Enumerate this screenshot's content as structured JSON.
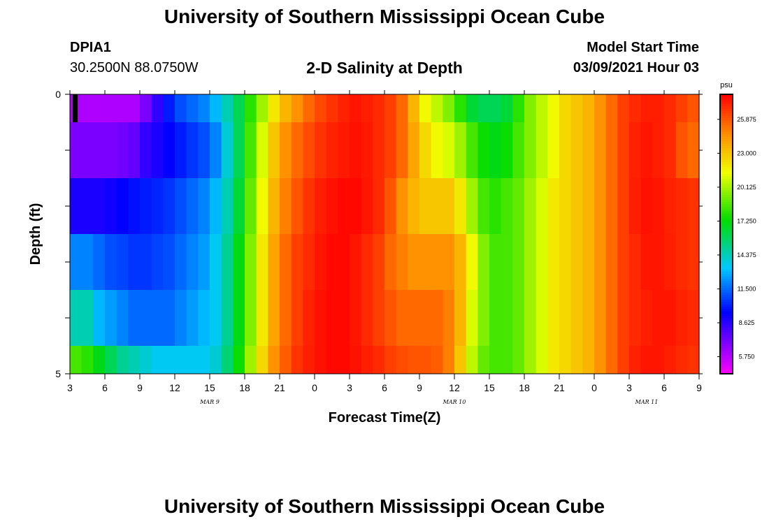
{
  "header": {
    "title": "University of Southern Mississippi Ocean Cube",
    "station_id": "DPIA1",
    "station_coords": "30.2500N 88.0750W",
    "plot_title": "2-D Salinity at Depth",
    "model_label": "Model Start Time",
    "model_time": "03/09/2021 Hour 03"
  },
  "footer": {
    "title": "University of Southern Mississippi Ocean Cube"
  },
  "chart_data": {
    "type": "heatmap",
    "title": "2-D Salinity at Depth",
    "xlabel": "Forecast Time(Z)",
    "ylabel": "Depth (ft)",
    "x_tick_labels": [
      "3",
      "6",
      "9",
      "12",
      "15",
      "18",
      "21",
      "0",
      "3",
      "6",
      "9",
      "12",
      "15",
      "18",
      "21",
      "0",
      "3",
      "6",
      "9"
    ],
    "date_labels": [
      {
        "label": "MAR 9",
        "tick_index": 4
      },
      {
        "label": "MAR 10",
        "tick_index": 11
      },
      {
        "label": "MAR 11",
        "tick_index": 16.5
      }
    ],
    "y_tick_labels": [
      "0",
      "5"
    ],
    "y_range": [
      0,
      5
    ],
    "x_hours_range": [
      0,
      54
    ],
    "colorbar": {
      "unit": "psu",
      "range": [
        4.3,
        28.0
      ],
      "tick_values": [
        5.75,
        8.625,
        11.5,
        14.375,
        17.25,
        20.125,
        23.0,
        25.875
      ],
      "tick_labels": [
        "5.750",
        "8.625",
        "11.500",
        "14.375",
        "17.250",
        "20.125",
        "23.000",
        "25.875"
      ]
    },
    "time_hours": [
      0,
      1,
      2,
      3,
      4,
      5,
      6,
      7,
      8,
      9,
      10,
      11,
      12,
      13,
      14,
      15,
      16,
      17,
      18,
      19,
      20,
      21,
      22,
      23,
      24,
      25,
      26,
      27,
      28,
      29,
      30,
      31,
      32,
      33,
      34,
      35,
      36,
      37,
      38,
      39,
      40,
      41,
      42,
      43,
      44,
      45,
      46,
      47,
      48,
      49,
      50,
      51,
      52,
      53
    ],
    "depth_rows": [
      {
        "depth_range": [
          0.0,
          0.5
        ],
        "values": [
          6.0,
          6.0,
          6.0,
          6.0,
          6.0,
          6.0,
          7.0,
          8.5,
          10.0,
          11.0,
          11.5,
          12.0,
          13.0,
          14.5,
          16.0,
          18.0,
          20.0,
          22.0,
          23.5,
          24.5,
          25.5,
          26.3,
          26.8,
          27.2,
          27.5,
          27.3,
          27.0,
          26.5,
          25.5,
          23.5,
          21.5,
          20.5,
          19.5,
          18.0,
          16.5,
          16.0,
          16.0,
          16.5,
          18.0,
          19.5,
          20.5,
          21.5,
          22.5,
          23.0,
          23.5,
          24.5,
          25.5,
          26.5,
          27.0,
          27.3,
          27.3,
          27.0,
          26.5,
          26.0
        ]
      },
      {
        "depth_range": [
          0.5,
          1.5
        ],
        "values": [
          7.0,
          7.0,
          7.0,
          7.0,
          7.2,
          7.5,
          8.5,
          9.0,
          9.5,
          10.0,
          10.5,
          11.0,
          12.0,
          14.0,
          16.0,
          18.5,
          21.0,
          23.0,
          24.5,
          25.5,
          26.2,
          26.8,
          27.2,
          27.4,
          27.6,
          27.4,
          27.0,
          26.5,
          25.5,
          24.0,
          22.5,
          21.5,
          21.0,
          20.0,
          18.5,
          17.5,
          17.0,
          17.5,
          18.5,
          19.5,
          20.5,
          21.5,
          22.5,
          23.0,
          23.5,
          24.5,
          25.5,
          26.5,
          27.2,
          27.5,
          27.3,
          27.0,
          26.0,
          25.5
        ]
      },
      {
        "depth_range": [
          1.5,
          2.5
        ],
        "values": [
          9.0,
          9.0,
          9.0,
          9.2,
          9.5,
          9.8,
          10.0,
          10.2,
          10.5,
          11.0,
          11.5,
          12.0,
          13.0,
          14.5,
          16.5,
          19.0,
          21.5,
          23.5,
          25.0,
          26.0,
          26.8,
          27.3,
          27.6,
          27.8,
          27.8,
          27.5,
          27.0,
          26.0,
          24.5,
          23.5,
          23.0,
          23.0,
          23.0,
          22.0,
          20.0,
          18.5,
          18.0,
          18.5,
          19.0,
          20.0,
          21.0,
          22.0,
          22.5,
          23.0,
          23.5,
          24.5,
          25.5,
          26.5,
          27.3,
          27.6,
          27.5,
          27.2,
          27.0,
          26.8
        ]
      },
      {
        "depth_range": [
          2.5,
          3.5
        ],
        "values": [
          12.0,
          12.0,
          11.5,
          11.0,
          10.8,
          10.5,
          10.5,
          10.8,
          11.0,
          11.5,
          12.0,
          12.5,
          13.5,
          15.0,
          17.0,
          19.5,
          22.0,
          24.0,
          25.5,
          26.5,
          27.0,
          27.5,
          27.8,
          27.8,
          27.5,
          27.0,
          26.5,
          25.5,
          25.0,
          24.5,
          24.5,
          24.5,
          24.5,
          23.5,
          21.5,
          19.5,
          18.5,
          18.5,
          19.0,
          20.0,
          21.0,
          22.0,
          22.5,
          23.0,
          23.5,
          24.5,
          25.5,
          26.5,
          27.0,
          27.5,
          27.5,
          27.3,
          27.0,
          26.8
        ]
      },
      {
        "depth_range": [
          3.5,
          4.5
        ],
        "values": [
          14.5,
          14.5,
          13.0,
          12.5,
          12.0,
          11.5,
          11.5,
          11.5,
          11.5,
          12.0,
          12.5,
          13.0,
          13.5,
          15.0,
          17.0,
          19.5,
          22.0,
          24.0,
          25.5,
          26.5,
          27.2,
          27.6,
          27.8,
          27.8,
          27.5,
          27.0,
          26.5,
          26.0,
          25.5,
          25.5,
          25.5,
          25.5,
          25.0,
          23.5,
          21.0,
          19.5,
          18.5,
          18.5,
          19.0,
          20.0,
          21.0,
          22.0,
          22.5,
          23.0,
          23.5,
          24.5,
          25.5,
          26.5,
          27.0,
          27.3,
          27.5,
          27.5,
          27.2,
          27.0
        ]
      },
      {
        "depth_range": [
          4.5,
          5.0
        ],
        "values": [
          18.5,
          18.0,
          17.0,
          16.0,
          15.0,
          14.5,
          14.0,
          13.5,
          13.5,
          13.5,
          13.5,
          13.5,
          14.0,
          15.5,
          17.5,
          20.0,
          22.5,
          24.5,
          25.8,
          26.8,
          27.3,
          27.6,
          27.8,
          27.8,
          27.6,
          27.3,
          27.0,
          26.5,
          26.2,
          26.0,
          26.0,
          25.8,
          25.0,
          23.0,
          20.5,
          19.0,
          18.5,
          18.5,
          19.0,
          20.0,
          21.0,
          22.0,
          22.5,
          23.0,
          23.5,
          24.5,
          25.5,
          26.5,
          27.2,
          27.5,
          27.5,
          27.3,
          27.0,
          26.8
        ]
      }
    ]
  }
}
